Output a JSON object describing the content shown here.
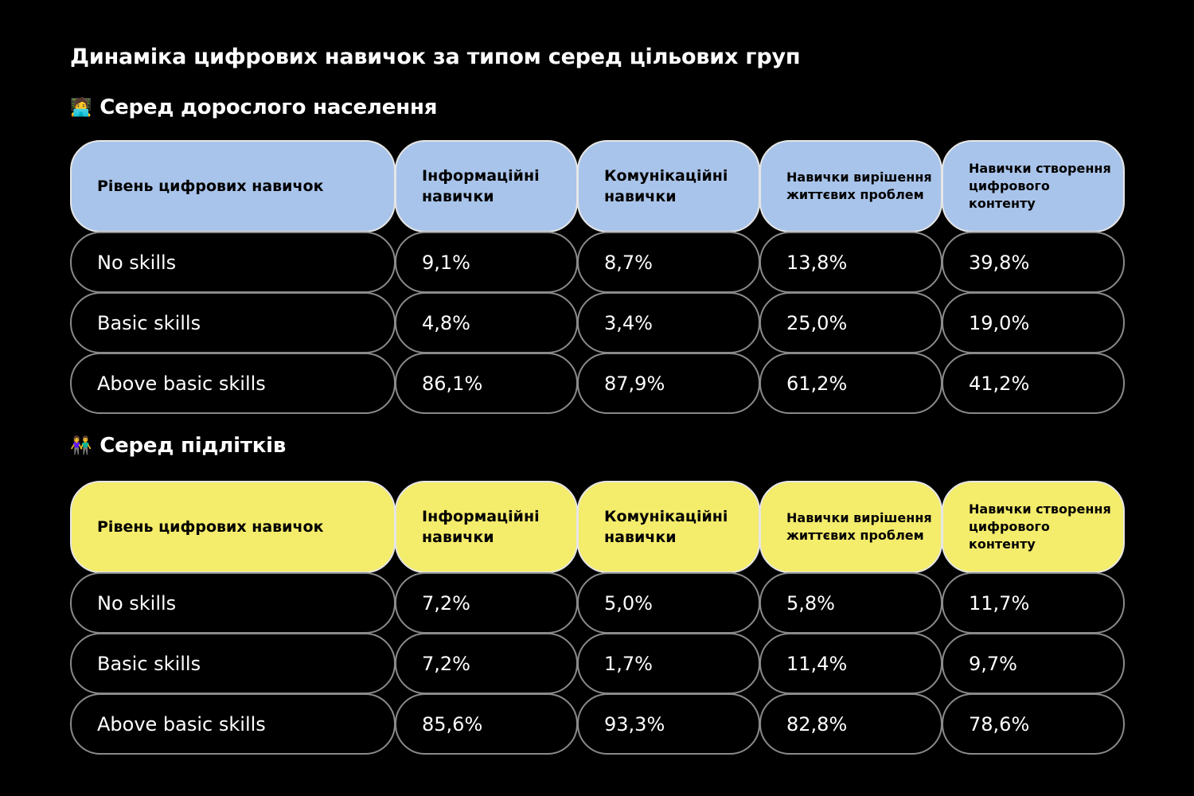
{
  "title": "Динаміка цифрових навичок за типом серед цільових груп",
  "sections": [
    {
      "emoji": "🧑‍💻",
      "heading": "Серед дорослого населення",
      "header_color": "#a9c4ea"
    },
    {
      "emoji": "👫",
      "heading": "Серед підлітків",
      "header_color": "#f4ec6b"
    }
  ],
  "columns": [
    "Рівень цифрових навичок",
    "Інформаційні навички",
    "Комунікаційні навички",
    "Навички вирішення життєвих проблем",
    "Навички створення цифрового контенту"
  ],
  "chart_data": [
    {
      "type": "table",
      "title": "Серед дорослого населення",
      "columns": [
        "Рівень цифрових навичок",
        "Інформаційні навички",
        "Комунікаційні навички",
        "Навички вирішення життєвих проблем",
        "Навички створення цифрового контенту"
      ],
      "rows": [
        [
          "No skills",
          "9,1%",
          "8,7%",
          "13,8%",
          "39,8%"
        ],
        [
          "Basic skills",
          "4,8%",
          "3,4%",
          "25,0%",
          "19,0%"
        ],
        [
          "Above basic skills",
          "86,1%",
          "87,9%",
          "61,2%",
          "41,2%"
        ]
      ]
    },
    {
      "type": "table",
      "title": "Серед підлітків",
      "columns": [
        "Рівень цифрових навичок",
        "Інформаційні навички",
        "Комунікаційні навички",
        "Навички вирішення життєвих проблем",
        "Навички створення цифрового контенту"
      ],
      "rows": [
        [
          "No skills",
          "7,2%",
          "5,0%",
          "5,8%",
          "11,7%"
        ],
        [
          "Basic skills",
          "7,2%",
          "1,7%",
          "11,4%",
          "9,7%"
        ],
        [
          "Above basic skills",
          "85,6%",
          "93,3%",
          "82,8%",
          "78,6%"
        ]
      ]
    }
  ]
}
